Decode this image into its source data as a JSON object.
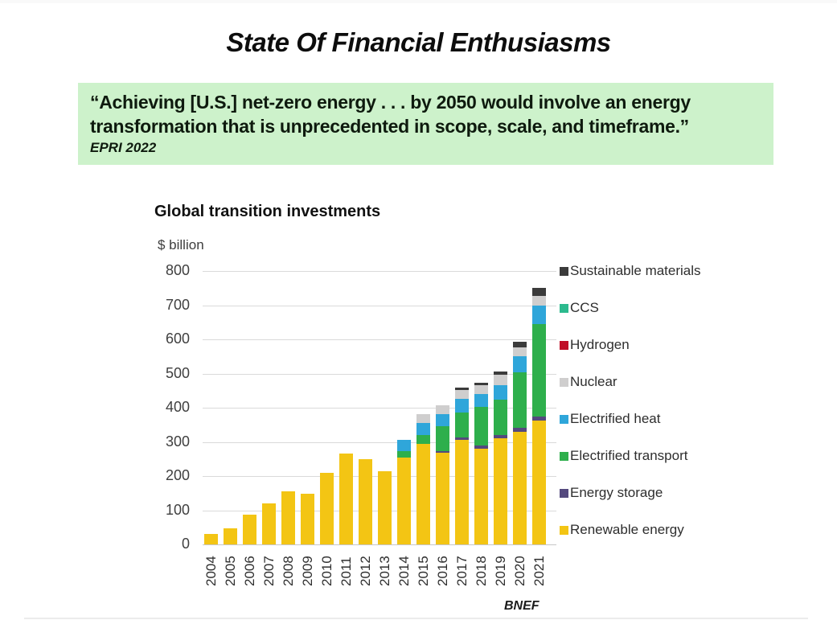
{
  "page": {
    "title": "State Of Financial Enthusiasms"
  },
  "quote": {
    "text": "“Achieving [U.S.] net-zero energy . . . by 2050 would involve an energy transformation that is unprecedented in scope, scale, and timeframe.”",
    "attribution": "EPRI 2022",
    "bg_color": "#CDF2CB"
  },
  "colors": {
    "quote_bg": "#CDF2CB",
    "grid": "#DADADA",
    "axis_text": "#3F3F3F",
    "title_text": "#0D0D0D"
  },
  "chart_data": {
    "type": "bar",
    "stacked": true,
    "title": "Global transition investments",
    "ylabel": "$ billion",
    "source": "BNEF",
    "ylim": [
      0,
      800
    ],
    "ytick_interval": 100,
    "yticks": [
      0,
      100,
      200,
      300,
      400,
      500,
      600,
      700,
      800
    ],
    "grid": true,
    "legend_position": "right",
    "legend_order": "top legend entry is top stack segment",
    "categories": [
      "2004",
      "2005",
      "2006",
      "2007",
      "2008",
      "2009",
      "2010",
      "2011",
      "2012",
      "2013",
      "2014",
      "2015",
      "2016",
      "2017",
      "2018",
      "2019",
      "2020",
      "2021"
    ],
    "series": [
      {
        "name": "Renewable energy",
        "color": "#F3C514",
        "values": [
          30,
          48,
          86,
          120,
          156,
          148,
          210,
          266,
          250,
          214,
          255,
          293,
          268,
          305,
          280,
          311,
          330,
          362
        ]
      },
      {
        "name": "Energy storage",
        "color": "#54497E",
        "values": [
          0,
          0,
          0,
          0,
          0,
          0,
          0,
          0,
          0,
          0,
          0,
          0,
          6,
          9,
          10,
          8,
          12,
          11
        ]
      },
      {
        "name": "Electrified transport",
        "color": "#2EAF4C",
        "values": [
          0,
          0,
          0,
          0,
          0,
          0,
          0,
          0,
          0,
          0,
          19,
          28,
          72,
          71,
          112,
          105,
          162,
          271
        ]
      },
      {
        "name": "Electrified heat",
        "color": "#2FA6DA",
        "values": [
          0,
          0,
          0,
          0,
          0,
          0,
          0,
          0,
          0,
          0,
          33,
          34,
          35,
          41,
          37,
          41,
          46,
          56
        ]
      },
      {
        "name": "Nuclear",
        "color": "#CFCECE",
        "values": [
          0,
          0,
          0,
          0,
          0,
          0,
          0,
          0,
          0,
          0,
          0,
          26,
          25,
          26,
          27,
          31,
          27,
          26
        ]
      },
      {
        "name": "Hydrogen",
        "color": "#C00E27",
        "values": [
          0,
          0,
          0,
          0,
          0,
          0,
          0,
          0,
          0,
          0,
          0,
          0,
          0,
          0,
          0,
          0,
          0,
          0
        ]
      },
      {
        "name": "CCS",
        "color": "#2CBA8E",
        "values": [
          0,
          0,
          0,
          0,
          0,
          0,
          0,
          0,
          0,
          0,
          0,
          0,
          0,
          0,
          0,
          0,
          0,
          0
        ]
      },
      {
        "name": "Sustainable materials",
        "color": "#3B3B3B",
        "values": [
          0,
          0,
          0,
          0,
          0,
          0,
          0,
          0,
          0,
          0,
          0,
          0,
          0,
          8,
          8,
          9,
          16,
          25
        ]
      }
    ]
  }
}
